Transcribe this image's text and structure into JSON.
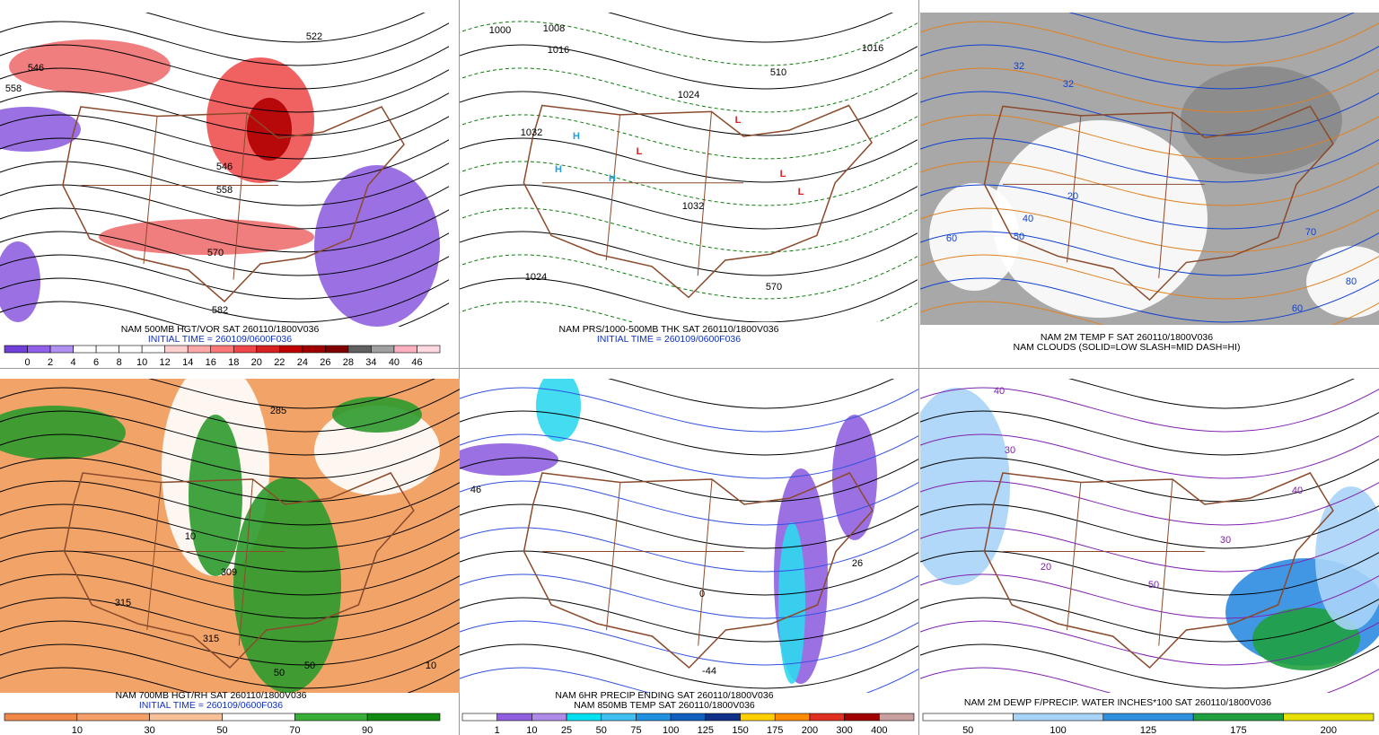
{
  "panels": [
    {
      "caption": [
        "NAM 500MB HGT/VOR SAT 260110/1800V036",
        "INITIAL TIME = 260109/0600F036"
      ],
      "colorbar": {
        "labels": [
          0,
          2,
          4,
          6,
          8,
          10,
          12,
          14,
          16,
          18,
          20,
          22,
          24,
          26,
          28,
          34,
          40,
          46
        ],
        "colors": [
          "#7040d8",
          "#9060e8",
          "#b090f0",
          "#ffffff",
          "#ffffff",
          "#ffffff",
          "#ffffff",
          "#ffd0d0",
          "#ffa8a8",
          "#ff7878",
          "#f04848",
          "#d82020",
          "#c00000",
          "#a00000",
          "#800000",
          "#606060",
          "#a0a0a0",
          "#ffb0c0",
          "#ffd8e0"
        ]
      },
      "map_labels": [
        546,
        558,
        522,
        546,
        558,
        570,
        582
      ]
    },
    {
      "caption": [
        "NAM PRS/1000-500MB THK SAT 260110/1800V036",
        "INITIAL TIME = 260109/0600F036"
      ],
      "map_labels": [
        1000,
        1008,
        1016,
        1032,
        1024,
        1032,
        1024,
        1016,
        510,
        570,
        "H",
        "H",
        "H",
        "L",
        "L",
        "L",
        "L"
      ]
    },
    {
      "caption": [
        "NAM 2M TEMP F SAT 260110/1800V036",
        "NAM CLOUDS (SOLID=LOW SLASH=MID DASH=HI)"
      ],
      "map_labels": [
        32,
        32,
        20,
        40,
        50,
        60,
        70,
        80,
        60
      ]
    },
    {
      "caption": [
        "NAM 700MB HGT/RH SAT 260110/1800V036",
        "INITIAL TIME = 260109/0600F036"
      ],
      "colorbar": {
        "labels": [
          10,
          30,
          50,
          70,
          90
        ],
        "colors": [
          "#f08848",
          "#f4a068",
          "#f8c098",
          "#ffffff",
          "#38b038",
          "#108a10"
        ]
      },
      "map_labels": [
        285,
        309,
        315,
        315,
        10,
        50,
        50,
        10
      ]
    },
    {
      "caption": [
        "NAM 6HR PRECIP ENDING SAT 260110/1800V036",
        "NAM 850MB TEMP SAT 260110/1800V036"
      ],
      "colorbar": {
        "labels": [
          1,
          10,
          25,
          50,
          75,
          100,
          125,
          150,
          175,
          200,
          300,
          400
        ],
        "colors": [
          "#ffffff",
          "#9060e0",
          "#b08ae8",
          "#00e0f0",
          "#40c0f0",
          "#2090e0",
          "#1060c0",
          "#10308a",
          "#ffd000",
          "#ff8c00",
          "#e03020",
          "#a00000",
          "#c8a0a0"
        ]
      },
      "map_labels": [
        46,
        26,
        -44,
        0
      ]
    },
    {
      "caption": [
        "NAM 2M DEWP F/PRECIP. WATER INCHES*100 SAT 260110/1800V036"
      ],
      "colorbar": {
        "labels": [
          50,
          100,
          125,
          175,
          200
        ],
        "colors": [
          "#ffffff",
          "#a8d4f8",
          "#3090e0",
          "#20a040",
          "#e8e000"
        ]
      },
      "map_labels": [
        40,
        30,
        20,
        30,
        40,
        50
      ]
    }
  ]
}
